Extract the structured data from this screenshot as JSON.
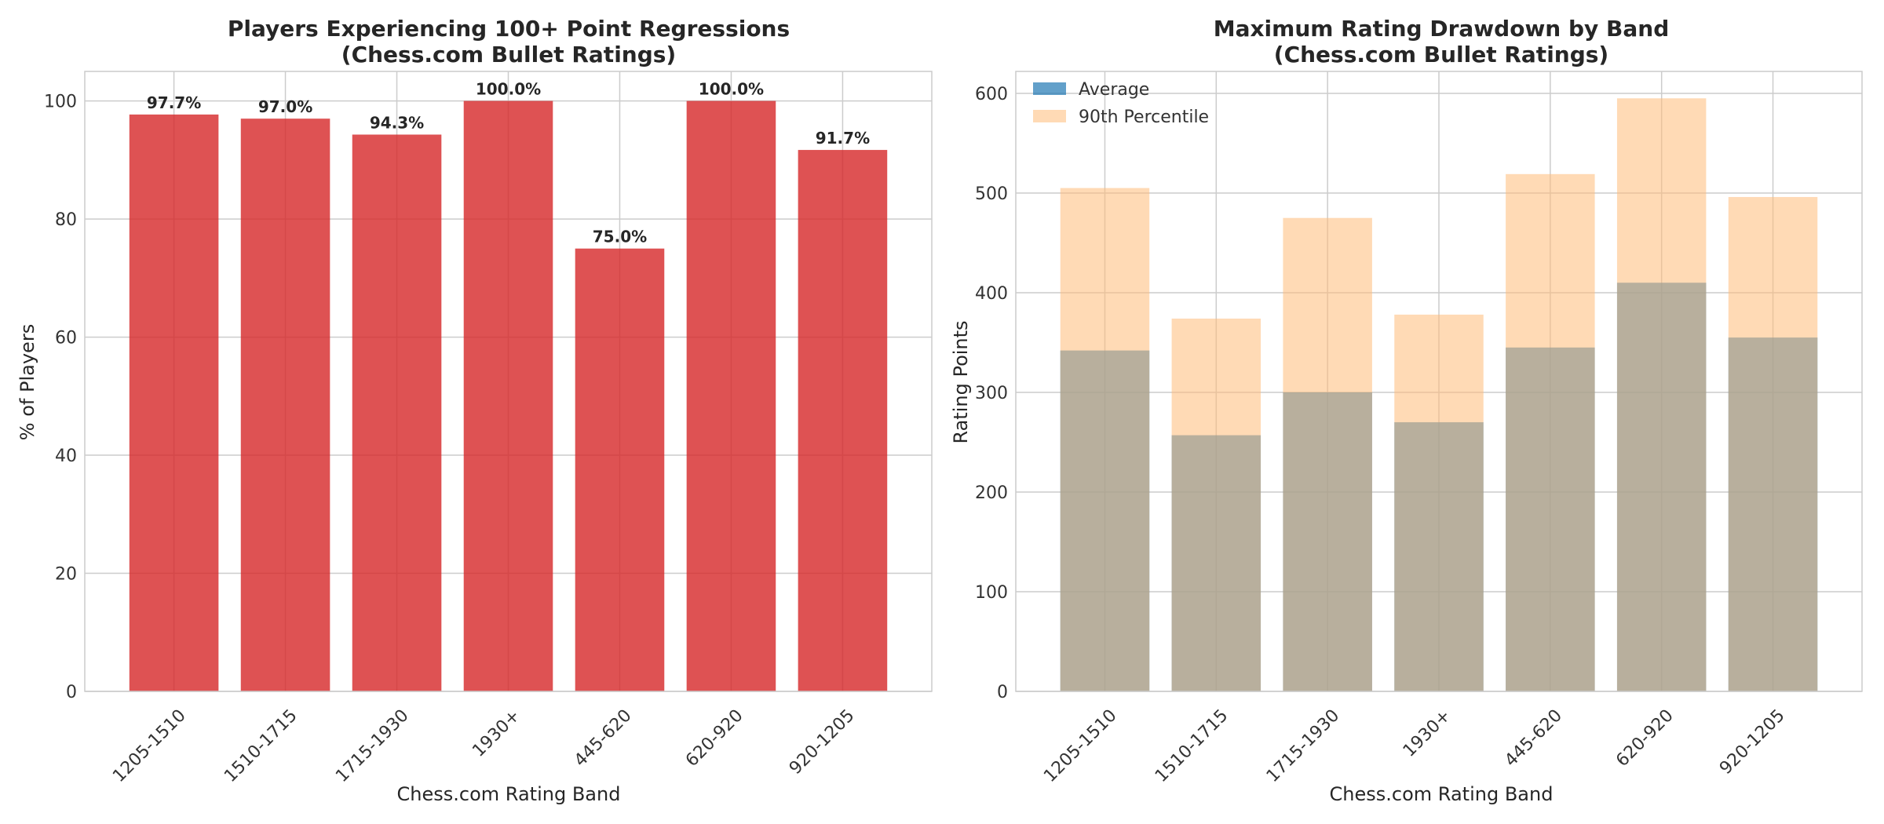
{
  "chart_data": [
    {
      "type": "bar",
      "title_lines": [
        "Players Experiencing 100+ Point Regressions",
        "(Chess.com Bullet Ratings)"
      ],
      "xlabel": "Chess.com Rating Band",
      "ylabel": "% of Players",
      "categories": [
        "1205-1510",
        "1510-1715",
        "1715-1930",
        "1930+",
        "445-620",
        "620-920",
        "920-1205"
      ],
      "values": [
        97.7,
        97.0,
        94.3,
        100.0,
        75.0,
        100.0,
        91.7
      ],
      "data_labels": [
        "97.7%",
        "97.0%",
        "94.3%",
        "100.0%",
        "75.0%",
        "100.0%",
        "91.7%"
      ],
      "ylim": [
        0,
        105
      ],
      "yticks": [
        0,
        20,
        40,
        60,
        80,
        100
      ],
      "bar_color": "#d62728",
      "grid": true
    },
    {
      "type": "bar",
      "title_lines": [
        "Maximum Rating Drawdown by Band",
        "(Chess.com Bullet Ratings)"
      ],
      "xlabel": "Chess.com Rating Band",
      "ylabel": "Rating Points",
      "categories": [
        "1205-1510",
        "1510-1715",
        "1715-1930",
        "1930+",
        "445-620",
        "620-920",
        "920-1205"
      ],
      "series": [
        {
          "name": "Average",
          "values": [
            342,
            257,
            300,
            270,
            345,
            410,
            355
          ],
          "color": "#1f77b4"
        },
        {
          "name": "90th Percentile",
          "values": [
            505,
            374,
            475,
            378,
            519,
            595,
            496
          ],
          "color": "#ffbb78"
        }
      ],
      "ylim": [
        0,
        622
      ],
      "yticks": [
        0,
        100,
        200,
        300,
        400,
        500,
        600
      ],
      "legend_position": "top-left",
      "grid": true
    }
  ]
}
